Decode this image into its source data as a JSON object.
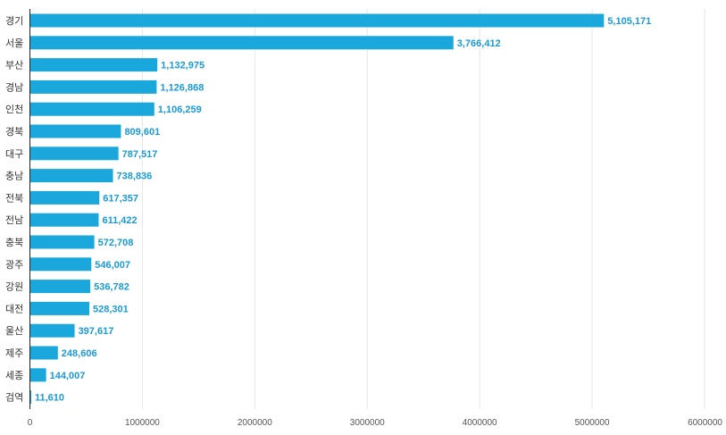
{
  "chart_data": {
    "type": "bar",
    "orientation": "horizontal",
    "title": "",
    "xlabel": "",
    "ylabel": "",
    "xlim": [
      0,
      6000000
    ],
    "x_ticks": [
      0,
      1000000,
      2000000,
      3000000,
      4000000,
      5000000,
      6000000
    ],
    "x_tick_labels": [
      "0",
      "1000000",
      "2000000",
      "3000000",
      "4000000",
      "5000000",
      "6000000"
    ],
    "grid": true,
    "legend": "none",
    "bar_color": "#1aa7dc",
    "label_color": "#1a9ad6",
    "categories": [
      "경기",
      "서울",
      "부산",
      "경남",
      "인천",
      "경북",
      "대구",
      "충남",
      "전북",
      "전남",
      "충북",
      "광주",
      "강원",
      "대전",
      "울산",
      "제주",
      "세종",
      "검역"
    ],
    "values": [
      5105171,
      3766412,
      1132975,
      1126868,
      1106259,
      809601,
      787517,
      738836,
      617357,
      611422,
      572708,
      546007,
      536782,
      528301,
      397617,
      248606,
      144007,
      11610
    ],
    "value_labels": [
      "5,105,171",
      "3,766,412",
      "1,132,975",
      "1,126,868",
      "1,106,259",
      "809,601",
      "787,517",
      "738,836",
      "617,357",
      "611,422",
      "572,708",
      "546,007",
      "536,782",
      "528,301",
      "397,617",
      "248,606",
      "144,007",
      "11,610"
    ]
  }
}
